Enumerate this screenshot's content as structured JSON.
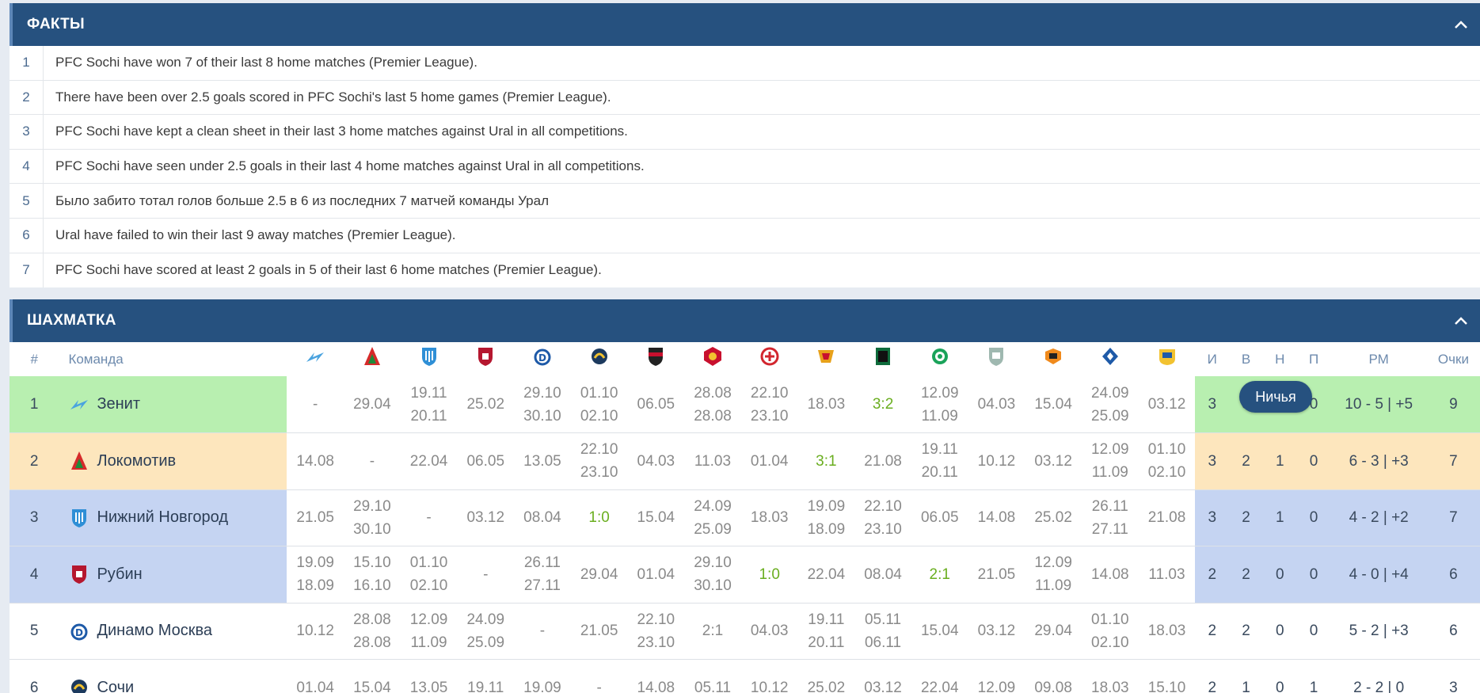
{
  "facts_panel": {
    "title": "ФАКТЫ",
    "items": [
      {
        "num": "1",
        "text": "PFC Sochi have won 7 of their last 8 home matches (Premier League)."
      },
      {
        "num": "2",
        "text": "There have been over 2.5 goals scored in PFC Sochi's last 5 home games (Premier League)."
      },
      {
        "num": "3",
        "text": "PFC Sochi have kept a clean sheet in their last 3 home matches against Ural in all competitions."
      },
      {
        "num": "4",
        "text": "PFC Sochi have seen under 2.5 goals in their last 4 home matches against Ural in all competitions."
      },
      {
        "num": "5",
        "text": "Было забито тотал голов больше 2.5 в 6 из последних 7 матчей команды Урал"
      },
      {
        "num": "6",
        "text": "Ural have failed to win their last 9 away matches (Premier League)."
      },
      {
        "num": "7",
        "text": "PFC Sochi have scored at least 2 goals in 5 of their last 6 home matches (Premier League)."
      }
    ]
  },
  "chess_panel": {
    "title": "ШАХМАТКА",
    "headers": {
      "pos": "#",
      "team": "Команда",
      "games": "И",
      "wins": "В",
      "draws": "Н",
      "losses": "П",
      "goals": "РМ",
      "points": "Очки"
    },
    "header_logos": [
      "zenit-logo-icon",
      "lokomotiv-logo-icon",
      "nizhny-logo-icon",
      "rubin-logo-icon",
      "dynamo-logo-icon",
      "sochi-logo-icon",
      "khimki-logo-icon",
      "cska-logo-icon",
      "spartak-logo-icon",
      "arsenal-logo-icon",
      "krasnodar-logo-icon",
      "akhmat-logo-icon",
      "ufa-logo-icon",
      "ural-logo-icon",
      "krylia-logo-icon",
      "rostov-logo-icon"
    ],
    "rows": [
      {
        "pos": "1",
        "team": "Зенит",
        "logo": "zenit-logo-icon",
        "bg": "green",
        "cells": [
          [
            "-"
          ],
          [
            "29.04"
          ],
          [
            "19.11",
            "20.11"
          ],
          [
            "25.02"
          ],
          [
            "29.10",
            "30.10"
          ],
          [
            "01.10",
            "02.10"
          ],
          [
            "06.05"
          ],
          [
            "28.08",
            "28.08"
          ],
          [
            "22.10",
            "23.10"
          ],
          [
            "18.03"
          ],
          [
            "3:2"
          ],
          [
            "12.09",
            "11.09"
          ],
          [
            "04.03"
          ],
          [
            "15.04"
          ],
          [
            "24.09",
            "25.09"
          ],
          [
            "03.12"
          ]
        ],
        "games": "3",
        "wins": "3",
        "draws": "0",
        "losses": "0",
        "goals": "10 - 5 | +5",
        "points": "9"
      },
      {
        "pos": "2",
        "team": "Локомотив",
        "logo": "lokomotiv-logo-icon",
        "bg": "orange",
        "cells": [
          [
            "14.08"
          ],
          [
            "-"
          ],
          [
            "22.04"
          ],
          [
            "06.05"
          ],
          [
            "13.05"
          ],
          [
            "22.10",
            "23.10"
          ],
          [
            "04.03"
          ],
          [
            "11.03"
          ],
          [
            "01.04"
          ],
          [
            "3:1"
          ],
          [
            "21.08"
          ],
          [
            "19.11",
            "20.11"
          ],
          [
            "10.12"
          ],
          [
            "03.12"
          ],
          [
            "12.09",
            "11.09"
          ],
          [
            "01.10",
            "02.10"
          ]
        ],
        "games": "3",
        "wins": "2",
        "draws": "1",
        "losses": "0",
        "goals": "6 - 3 | +3",
        "points": "7"
      },
      {
        "pos": "3",
        "team": "Нижний Новгород",
        "logo": "nizhny-logo-icon",
        "bg": "blue",
        "cells": [
          [
            "21.05"
          ],
          [
            "29.10",
            "30.10"
          ],
          [
            "-"
          ],
          [
            "03.12"
          ],
          [
            "08.04"
          ],
          [
            "1:0"
          ],
          [
            "15.04"
          ],
          [
            "24.09",
            "25.09"
          ],
          [
            "18.03"
          ],
          [
            "19.09",
            "18.09"
          ],
          [
            "22.10",
            "23.10"
          ],
          [
            "06.05"
          ],
          [
            "14.08"
          ],
          [
            "25.02"
          ],
          [
            "26.11",
            "27.11"
          ],
          [
            "21.08"
          ]
        ],
        "games": "3",
        "wins": "2",
        "draws": "1",
        "losses": "0",
        "goals": "4 - 2 | +2",
        "points": "7"
      },
      {
        "pos": "4",
        "team": "Рубин",
        "logo": "rubin-logo-icon",
        "bg": "blue",
        "cells": [
          [
            "19.09",
            "18.09"
          ],
          [
            "15.10",
            "16.10"
          ],
          [
            "01.10",
            "02.10"
          ],
          [
            "-"
          ],
          [
            "26.11",
            "27.11"
          ],
          [
            "29.04"
          ],
          [
            "01.04"
          ],
          [
            "29.10",
            "30.10"
          ],
          [
            "1:0"
          ],
          [
            "22.04"
          ],
          [
            "08.04"
          ],
          [
            "2:1"
          ],
          [
            "21.05"
          ],
          [
            "12.09",
            "11.09"
          ],
          [
            "14.08"
          ],
          [
            "11.03"
          ]
        ],
        "games": "2",
        "wins": "2",
        "draws": "0",
        "losses": "0",
        "goals": "4 - 0 | +4",
        "points": "6"
      },
      {
        "pos": "5",
        "team": "Динамо Москва",
        "logo": "dynamo-logo-icon",
        "bg": "none",
        "cells": [
          [
            "10.12"
          ],
          [
            "28.08",
            "28.08"
          ],
          [
            "12.09",
            "11.09"
          ],
          [
            "24.09",
            "25.09"
          ],
          [
            "-"
          ],
          [
            "21.05"
          ],
          [
            "22.10",
            "23.10"
          ],
          [
            "2:1"
          ],
          [
            "04.03"
          ],
          [
            "19.11",
            "20.11"
          ],
          [
            "05.11",
            "06.11"
          ],
          [
            "15.04"
          ],
          [
            "03.12"
          ],
          [
            "29.04"
          ],
          [
            "01.10",
            "02.10"
          ],
          [
            "18.03"
          ]
        ],
        "games": "2",
        "wins": "2",
        "draws": "0",
        "losses": "0",
        "goals": "5 - 2 | +3",
        "points": "6"
      },
      {
        "pos": "6",
        "team": "Сочи",
        "logo": "sochi-logo-icon",
        "bg": "none",
        "cells": [
          [
            "01.04"
          ],
          [
            "15.04"
          ],
          [
            "13.05"
          ],
          [
            "19.11"
          ],
          [
            "19.09"
          ],
          [
            "-"
          ],
          [
            "14.08"
          ],
          [
            "05.11"
          ],
          [
            "10.12"
          ],
          [
            "25.02"
          ],
          [
            "03.12"
          ],
          [
            "22.04"
          ],
          [
            "12.09"
          ],
          [
            "09.08"
          ],
          [
            "18.03"
          ],
          [
            "15.10"
          ]
        ],
        "games": "2",
        "wins": "1",
        "draws": "0",
        "losses": "1",
        "goals": "2 - 2 | 0",
        "points": "3"
      }
    ],
    "tooltip": "Ничья"
  }
}
